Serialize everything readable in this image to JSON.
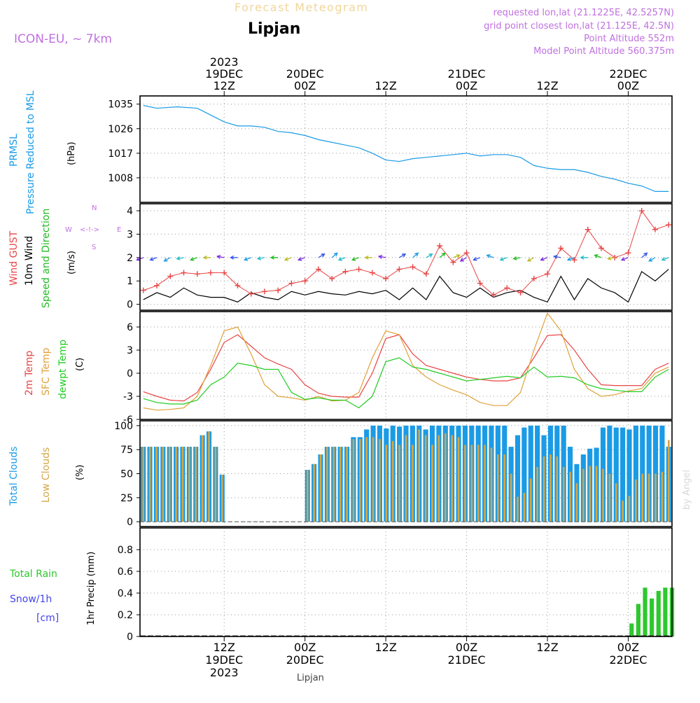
{
  "header": {
    "suptitle": "Forecast Meteogram",
    "location": "Lipjan",
    "model": "ICON-EU, ~ 7km",
    "requested": "requested lon,lat (21.1225E, 42.5257N)",
    "gridpoint": "grid point closest lon,lat (21.125E, 42.5N)",
    "altitude": "Point Altitude 552m",
    "model_altitude": "Model Point Altitude 560.375m"
  },
  "footer": {
    "station": "Lipjan",
    "credit": "by Angel"
  },
  "colors": {
    "pressure": "#1a9be6",
    "gust": "#e84545",
    "wind": "#000000",
    "direction": "#22bb22",
    "temp": "#e84545",
    "sfc": "#e0a23a",
    "dewpt": "#22cc22",
    "total_clouds": "#1a9be6",
    "low_clouds": "#d4a646",
    "rain": "#2ec72e",
    "snow": "#4444ee",
    "compass": "#c070e0",
    "info": "#c070e0",
    "grid": "#999999"
  },
  "time_axis": {
    "top_ticks": [
      {
        "t": 12,
        "lines": [
          "2023",
          "19DEC",
          "12Z"
        ]
      },
      {
        "t": 24,
        "lines": [
          "20DEC",
          "00Z"
        ]
      },
      {
        "t": 36,
        "lines": [
          "12Z"
        ]
      },
      {
        "t": 48,
        "lines": [
          "21DEC",
          "00Z"
        ]
      },
      {
        "t": 60,
        "lines": [
          "12Z"
        ]
      },
      {
        "t": 72,
        "lines": [
          "22DEC",
          "00Z"
        ]
      }
    ],
    "bottom_ticks": [
      {
        "t": 12,
        "lines": [
          "12Z",
          "19DEC",
          "2023"
        ]
      },
      {
        "t": 24,
        "lines": [
          "00Z",
          "20DEC"
        ]
      },
      {
        "t": 36,
        "lines": [
          "12Z"
        ]
      },
      {
        "t": 48,
        "lines": [
          "00Z",
          "21DEC"
        ]
      },
      {
        "t": 60,
        "lines": [
          "12Z"
        ]
      },
      {
        "t": 72,
        "lines": [
          "00Z",
          "22DEC"
        ]
      }
    ]
  },
  "panel_labels": {
    "pressure": [
      "PRMSL",
      "Pressure Reduced to MSL",
      "(hPa)"
    ],
    "wind": [
      "Wind GUST",
      "10m Wind",
      "Speed and Direction",
      "(m/s)"
    ],
    "compass": {
      "n": "N",
      "s": "S",
      "w": "W",
      "e": "E",
      "arrows": "<-!->"
    },
    "temp": [
      "2m Temp",
      "SFC Temp",
      "dewpt Temp",
      "(C)"
    ],
    "clouds": [
      "Total Clouds",
      "Low Clouds",
      "(%)"
    ],
    "precip": [
      "Total  Rain",
      "Snow/1h",
      "[cm]",
      "1hr Precip (mm)"
    ]
  },
  "chart_data": [
    {
      "type": "line",
      "title": "PRMSL Pressure Reduced to MSL",
      "ylabel": "(hPa)",
      "ylim": [
        999,
        1038
      ],
      "yticks": [
        1008,
        1017,
        1026,
        1035
      ],
      "xlim": [
        -0.5,
        78.5
      ],
      "series": [
        {
          "name": "PRMSL",
          "x": [
            0,
            2,
            5,
            8,
            10,
            12,
            14,
            16,
            18,
            20,
            22,
            24,
            26,
            28,
            30,
            32,
            34,
            36,
            38,
            40,
            42,
            44,
            46,
            48,
            50,
            52,
            54,
            56,
            58,
            60,
            62,
            64,
            66,
            68,
            70,
            72,
            74,
            76,
            78
          ],
          "y": [
            1034.5,
            1033.5,
            1034.0,
            1033.5,
            1031.0,
            1028.5,
            1027.0,
            1027.0,
            1026.5,
            1025.0,
            1024.5,
            1023.5,
            1022.0,
            1021.0,
            1020.0,
            1019.0,
            1017.0,
            1014.5,
            1014.0,
            1015.0,
            1015.5,
            1016.0,
            1016.5,
            1017.0,
            1016.0,
            1016.5,
            1016.5,
            1015.5,
            1012.5,
            1011.5,
            1011.0,
            1011.0,
            1010.0,
            1008.5,
            1007.5,
            1006.0,
            1005.0,
            1003.0,
            1003.0
          ]
        }
      ]
    },
    {
      "type": "line",
      "title": "Wind GUST / 10m Wind Speed and Direction",
      "ylabel": "(m/s)",
      "ylim": [
        -0.25,
        4.3
      ],
      "yticks": [
        0,
        1,
        2,
        3,
        4
      ],
      "series": [
        {
          "name": "Wind GUST",
          "x": [
            0,
            2,
            4,
            6,
            8,
            10,
            12,
            14,
            16,
            18,
            20,
            22,
            24,
            26,
            28,
            30,
            32,
            34,
            36,
            38,
            40,
            42,
            44,
            46,
            48,
            50,
            52,
            54,
            56,
            58,
            60,
            62,
            64,
            66,
            68,
            70,
            72,
            74,
            76,
            78
          ],
          "y": [
            0.6,
            0.8,
            1.2,
            1.35,
            1.3,
            1.35,
            1.35,
            0.8,
            0.45,
            0.55,
            0.6,
            0.9,
            1.0,
            1.5,
            1.1,
            1.4,
            1.5,
            1.35,
            1.1,
            1.5,
            1.6,
            1.3,
            2.5,
            1.8,
            2.2,
            0.9,
            0.4,
            0.7,
            0.5,
            1.1,
            1.3,
            2.4,
            1.9,
            3.2,
            2.4,
            2.0,
            2.2,
            4.0,
            3.2,
            3.4
          ]
        },
        {
          "name": "10m Wind",
          "x": [
            0,
            2,
            4,
            6,
            8,
            10,
            12,
            14,
            16,
            18,
            20,
            22,
            24,
            26,
            28,
            30,
            32,
            34,
            36,
            38,
            40,
            42,
            44,
            46,
            48,
            50,
            52,
            54,
            56,
            58,
            60,
            62,
            64,
            66,
            68,
            70,
            72,
            74,
            76,
            78
          ],
          "y": [
            0.2,
            0.5,
            0.3,
            0.7,
            0.4,
            0.3,
            0.3,
            0.1,
            0.5,
            0.3,
            0.2,
            0.55,
            0.4,
            0.55,
            0.45,
            0.4,
            0.55,
            0.45,
            0.6,
            0.2,
            0.7,
            0.2,
            1.2,
            0.5,
            0.3,
            0.7,
            0.3,
            0.5,
            0.6,
            0.3,
            0.1,
            1.2,
            0.2,
            1.1,
            0.7,
            0.5,
            0.1,
            1.4,
            1.0,
            1.5
          ]
        }
      ],
      "direction_arrows": {
        "note": "arrows drawn along y = 2 m/s; angle in degrees the arrow points (0 = east, 90 = north)",
        "x": [
          0,
          2,
          4,
          6,
          8,
          10,
          12,
          14,
          16,
          18,
          20,
          22,
          24,
          26,
          28,
          30,
          32,
          34,
          36,
          38,
          40,
          42,
          44,
          46,
          48,
          50,
          52,
          54,
          56,
          58,
          60,
          62,
          64,
          66,
          68,
          70,
          72,
          74,
          76,
          78
        ],
        "angle": [
          200,
          200,
          210,
          190,
          200,
          180,
          170,
          180,
          200,
          190,
          180,
          200,
          200,
          30,
          40,
          200,
          200,
          180,
          170,
          30,
          40,
          30,
          40,
          20,
          210,
          200,
          160,
          200,
          190,
          210,
          200,
          170,
          200,
          180,
          160,
          190,
          200,
          40,
          210,
          200
        ]
      }
    },
    {
      "type": "line",
      "title": "2m Temp / SFC Temp / dewpt Temp",
      "ylabel": "(C)",
      "ylim": [
        -6,
        8
      ],
      "yticks": [
        -6,
        -3,
        0,
        3,
        6
      ],
      "series": [
        {
          "name": "2m Temp",
          "x": [
            0,
            2,
            4,
            6,
            8,
            10,
            12,
            14,
            16,
            18,
            20,
            22,
            24,
            26,
            28,
            30,
            32,
            34,
            36,
            38,
            40,
            42,
            44,
            46,
            48,
            50,
            52,
            54,
            56,
            58,
            60,
            62,
            64,
            66,
            68,
            70,
            72,
            74,
            76,
            78
          ],
          "y": [
            -2.4,
            -3.0,
            -3.5,
            -3.6,
            -2.5,
            0.5,
            4.0,
            5.0,
            3.5,
            2.0,
            1.2,
            0.5,
            -1.5,
            -2.6,
            -3.0,
            -3.1,
            -3.1,
            0.0,
            4.5,
            5.0,
            2.5,
            1.0,
            0.5,
            0.0,
            -0.5,
            -0.8,
            -1.0,
            -1.0,
            -0.6,
            2.0,
            4.9,
            5.0,
            3.0,
            0.5,
            -1.5,
            -1.6,
            -1.6,
            -1.6,
            0.5,
            1.3
          ]
        },
        {
          "name": "SFC Temp",
          "x": [
            0,
            2,
            4,
            6,
            8,
            10,
            12,
            14,
            16,
            18,
            20,
            22,
            24,
            26,
            28,
            30,
            32,
            34,
            36,
            38,
            40,
            42,
            44,
            46,
            48,
            50,
            52,
            54,
            56,
            58,
            60,
            62,
            64,
            66,
            68,
            70,
            72,
            74,
            76,
            78
          ],
          "y": [
            -4.5,
            -4.8,
            -4.7,
            -4.5,
            -3.0,
            1.0,
            5.5,
            6.0,
            2.5,
            -1.5,
            -3.0,
            -3.2,
            -3.5,
            -3.0,
            -3.6,
            -3.5,
            -2.5,
            2.0,
            5.5,
            5.0,
            1.0,
            -0.5,
            -1.5,
            -2.2,
            -2.8,
            -3.8,
            -4.2,
            -4.2,
            -2.5,
            3.0,
            7.8,
            5.5,
            0.5,
            -2.0,
            -3.0,
            -2.8,
            -2.3,
            -2.0,
            0.0,
            0.8
          ]
        },
        {
          "name": "dewpt Temp",
          "x": [
            0,
            2,
            4,
            6,
            8,
            10,
            12,
            14,
            16,
            18,
            20,
            22,
            24,
            26,
            28,
            30,
            32,
            34,
            36,
            38,
            40,
            42,
            44,
            46,
            48,
            50,
            52,
            54,
            56,
            58,
            60,
            62,
            64,
            66,
            68,
            70,
            72,
            74,
            76,
            78
          ],
          "y": [
            -3.3,
            -3.8,
            -4.0,
            -4.0,
            -3.5,
            -1.5,
            -0.5,
            1.3,
            1.0,
            0.5,
            0.5,
            -2.5,
            -3.4,
            -3.2,
            -3.5,
            -3.5,
            -4.5,
            -3.0,
            1.5,
            2.0,
            0.8,
            0.5,
            0.0,
            -0.5,
            -1.0,
            -0.8,
            -0.6,
            -0.4,
            -0.6,
            0.8,
            -0.5,
            -0.4,
            -0.6,
            -1.5,
            -2.0,
            -2.2,
            -2.4,
            -2.4,
            -0.5,
            0.5
          ]
        }
      ]
    },
    {
      "type": "bar",
      "title": "Total Clouds / Low Clouds",
      "ylabel": "(%)",
      "ylim": [
        -5,
        105
      ],
      "yticks": [
        0,
        25,
        50,
        75,
        100
      ],
      "series": [
        {
          "name": "Total Clouds",
          "values": [
            78,
            78,
            78,
            78,
            78,
            78,
            78,
            78,
            78,
            90,
            94,
            78,
            49,
            0,
            0,
            0,
            0,
            0,
            0,
            0,
            0,
            0,
            0,
            0,
            0,
            54,
            60,
            70,
            78,
            78,
            78,
            78,
            88,
            88,
            96,
            100,
            100,
            97,
            100,
            99,
            100,
            100,
            100,
            96,
            100,
            100,
            100,
            100,
            100,
            100,
            100,
            100,
            100,
            100,
            100,
            100,
            78,
            90,
            98,
            100,
            100,
            90,
            100,
            100,
            100,
            78,
            60,
            70,
            76,
            77,
            98,
            100,
            98,
            98,
            96,
            100,
            100,
            100,
            100,
            100,
            78
          ]
        },
        {
          "name": "Low Clouds",
          "values": [
            78,
            78,
            78,
            78,
            78,
            78,
            78,
            78,
            78,
            90,
            94,
            78,
            49,
            0,
            0,
            0,
            0,
            0,
            0,
            0,
            0,
            0,
            0,
            0,
            0,
            54,
            60,
            70,
            78,
            78,
            78,
            78,
            86,
            86,
            88,
            88,
            86,
            80,
            84,
            80,
            90,
            80,
            96,
            90,
            80,
            90,
            92,
            90,
            88,
            80,
            80,
            80,
            80,
            77,
            70,
            70,
            50,
            26,
            30,
            45,
            57,
            68,
            70,
            68,
            57,
            52,
            40,
            55,
            58,
            58,
            55,
            50,
            40,
            22,
            27,
            44,
            50,
            50,
            50,
            52,
            85
          ]
        }
      ]
    },
    {
      "type": "bar",
      "title": "1hr Precip",
      "ylabel": "1hr Precip (mm)",
      "ylim": [
        0,
        1.0
      ],
      "yticks": [
        0,
        0.2,
        0.4,
        0.6,
        0.8
      ],
      "series": [
        {
          "name": "Total Rain",
          "x": [
            72.5,
            73.5,
            74.5,
            75.5,
            76.5,
            77.5,
            78.5
          ],
          "values": [
            0.12,
            0.3,
            0.45,
            0.35,
            0.42,
            0.45,
            0.45
          ]
        }
      ]
    }
  ]
}
